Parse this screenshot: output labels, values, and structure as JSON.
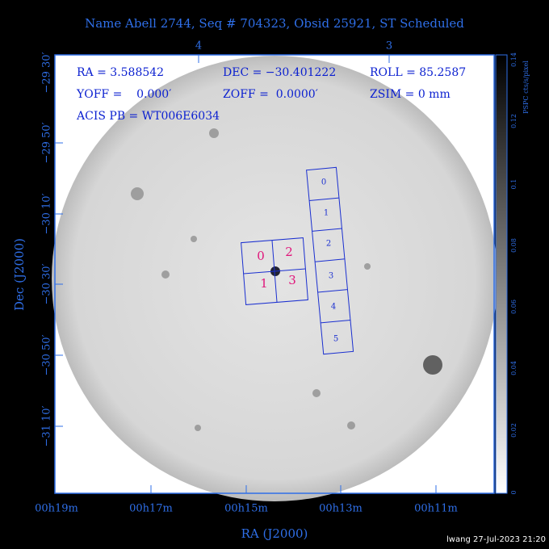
{
  "header": {
    "title": "Name Abell 2744, Seq # 704323, Obsid 25921, ST Scheduled"
  },
  "top_axis": {
    "labels": [
      "4",
      "3"
    ]
  },
  "left_axis": {
    "title": "Dec (J2000)",
    "labels": [
      "−29 30′",
      "−29 50′",
      "−30 10′",
      "−30 30′",
      "−30 50′",
      "−31 10′"
    ]
  },
  "bottom_axis": {
    "title": "RA (J2000)",
    "labels": [
      "00h19m",
      "00h17m",
      "00h15m",
      "00h13m",
      "00h11m"
    ]
  },
  "info": [
    "RA = 3.588542",
    "DEC = −30.401222",
    "ROLL = 85.2587",
    "YOFF =    0.000′",
    "ZOFF =  0.0000′",
    "ZSIM = 0 mm",
    "ACIS PB = WT006E6034"
  ],
  "colorbar": {
    "title": "PSPC cts/s/pixel",
    "labels": [
      "0",
      "0.02",
      "0.04",
      "0.06",
      "0.08",
      "0.1",
      "0.12",
      "0.14"
    ]
  },
  "acis_i": {
    "labels": [
      "0",
      "2",
      "1",
      "3"
    ]
  },
  "acis_s": {
    "labels": [
      "0",
      "1",
      "2",
      "3",
      "4",
      "5"
    ]
  },
  "footer": "lwang 27-Jul-2023 21:20"
}
